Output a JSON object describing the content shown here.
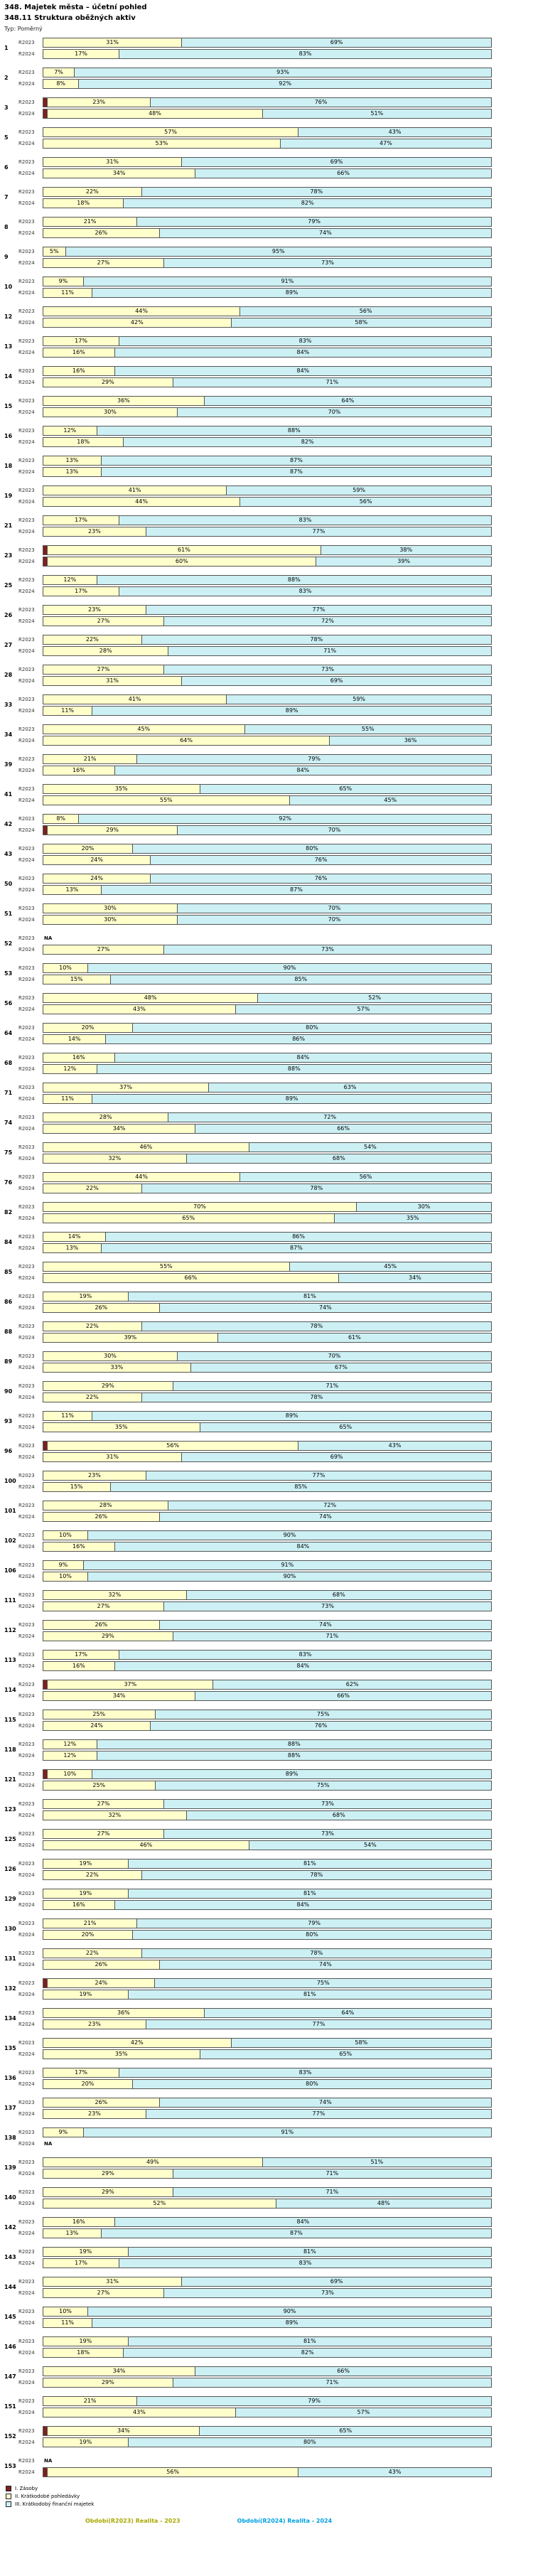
{
  "header": {
    "title": "348. Majetek města – účetní pohled",
    "subtitle": "348.11 Struktura oběžných aktiv",
    "type_label": "Typ: Poměrný"
  },
  "chart_data": {
    "type": "bar",
    "orientation": "horizontal",
    "stacked": true,
    "unit": "%",
    "title": "348.11 Struktura oběžných aktiv",
    "xlim": [
      0,
      100
    ],
    "series_labels": [
      "R2023",
      "R2024"
    ],
    "segments": [
      "I. Zásoby",
      "II. Krátkodobé pohledávky",
      "III. Krátkodobý finanční majetek"
    ],
    "colors": {
      "zasoby": "#7f1f1f",
      "pohledavky": "#ffffcc",
      "finmajetek": "#ccf0f4"
    },
    "na_label": "NA",
    "rows": [
      {
        "id": "1",
        "r2023": [
          0,
          31,
          69
        ],
        "r2024": [
          0,
          17,
          83
        ]
      },
      {
        "id": "2",
        "r2023": [
          0,
          7,
          93
        ],
        "r2024": [
          0,
          8,
          92
        ]
      },
      {
        "id": "3",
        "r2023": [
          1,
          23,
          76
        ],
        "r2024": [
          1,
          48,
          51
        ]
      },
      {
        "id": "5",
        "r2023": [
          0,
          57,
          43
        ],
        "r2024": [
          0,
          53,
          47
        ]
      },
      {
        "id": "6",
        "r2023": [
          0,
          31,
          69
        ],
        "r2024": [
          0,
          34,
          66
        ]
      },
      {
        "id": "7",
        "r2023": [
          0,
          22,
          78
        ],
        "r2024": [
          0,
          18,
          82
        ]
      },
      {
        "id": "8",
        "r2023": [
          0,
          21,
          79
        ],
        "r2024": [
          0,
          26,
          74
        ]
      },
      {
        "id": "9",
        "r2023": [
          0,
          5,
          95
        ],
        "r2024": [
          0,
          27,
          73
        ]
      },
      {
        "id": "10",
        "r2023": [
          0,
          9,
          91
        ],
        "r2024": [
          0,
          11,
          89
        ]
      },
      {
        "id": "12",
        "r2023": [
          0,
          44,
          56
        ],
        "r2024": [
          0,
          42,
          58
        ]
      },
      {
        "id": "13",
        "r2023": [
          0,
          17,
          83
        ],
        "r2024": [
          0,
          16,
          84
        ]
      },
      {
        "id": "14",
        "r2023": [
          0,
          16,
          84
        ],
        "r2024": [
          0,
          29,
          71
        ]
      },
      {
        "id": "15",
        "r2023": [
          0,
          36,
          64
        ],
        "r2024": [
          0,
          30,
          70
        ]
      },
      {
        "id": "16",
        "r2023": [
          0,
          12,
          88
        ],
        "r2024": [
          0,
          18,
          82
        ]
      },
      {
        "id": "18",
        "r2023": [
          0,
          13,
          87
        ],
        "r2024": [
          0,
          13,
          87
        ]
      },
      {
        "id": "19",
        "r2023": [
          0,
          41,
          59
        ],
        "r2024": [
          0,
          44,
          56
        ]
      },
      {
        "id": "21",
        "r2023": [
          0,
          17,
          83
        ],
        "r2024": [
          0,
          23,
          77
        ]
      },
      {
        "id": "23",
        "r2023": [
          1,
          61,
          38
        ],
        "r2024": [
          1,
          60,
          39
        ]
      },
      {
        "id": "25",
        "r2023": [
          0,
          12,
          88
        ],
        "r2024": [
          0,
          17,
          83
        ]
      },
      {
        "id": "26",
        "r2023": [
          0,
          23,
          77
        ],
        "r2024": [
          0,
          27,
          72
        ]
      },
      {
        "id": "27",
        "r2023": [
          0,
          22,
          78
        ],
        "r2024": [
          0,
          28,
          71
        ]
      },
      {
        "id": "28",
        "r2023": [
          0,
          27,
          73
        ],
        "r2024": [
          0,
          31,
          69
        ]
      },
      {
        "id": "33",
        "r2023": [
          0,
          41,
          59
        ],
        "r2024": [
          0,
          11,
          89
        ]
      },
      {
        "id": "34",
        "r2023": [
          0,
          45,
          55
        ],
        "r2024": [
          0,
          64,
          36
        ]
      },
      {
        "id": "39",
        "r2023": [
          0,
          21,
          79
        ],
        "r2024": [
          0,
          16,
          84
        ]
      },
      {
        "id": "41",
        "r2023": [
          0,
          35,
          65
        ],
        "r2024": [
          0,
          55,
          45
        ]
      },
      {
        "id": "42",
        "r2023": [
          0,
          8,
          92
        ],
        "r2024": [
          1,
          29,
          70
        ]
      },
      {
        "id": "43",
        "r2023": [
          0,
          20,
          80
        ],
        "r2024": [
          0,
          24,
          76
        ]
      },
      {
        "id": "50",
        "r2023": [
          0,
          24,
          76
        ],
        "r2024": [
          0,
          13,
          87
        ]
      },
      {
        "id": "51",
        "r2023": [
          0,
          30,
          70
        ],
        "r2024": [
          0,
          30,
          70
        ]
      },
      {
        "id": "52",
        "r2023": "NA",
        "r2024": [
          0,
          27,
          73
        ]
      },
      {
        "id": "53",
        "r2023": [
          0,
          10,
          90
        ],
        "r2024": [
          0,
          15,
          85
        ]
      },
      {
        "id": "56",
        "r2023": [
          0,
          48,
          52
        ],
        "r2024": [
          0,
          43,
          57
        ]
      },
      {
        "id": "64",
        "r2023": [
          0,
          20,
          80
        ],
        "r2024": [
          0,
          14,
          86
        ]
      },
      {
        "id": "68",
        "r2023": [
          0,
          16,
          84
        ],
        "r2024": [
          0,
          12,
          88
        ]
      },
      {
        "id": "71",
        "r2023": [
          0,
          37,
          63
        ],
        "r2024": [
          0,
          11,
          89
        ]
      },
      {
        "id": "74",
        "r2023": [
          0,
          28,
          72
        ],
        "r2024": [
          0,
          34,
          66
        ]
      },
      {
        "id": "75",
        "r2023": [
          0,
          46,
          54
        ],
        "r2024": [
          0,
          32,
          68
        ]
      },
      {
        "id": "76",
        "r2023": [
          0,
          44,
          56
        ],
        "r2024": [
          0,
          22,
          78
        ]
      },
      {
        "id": "82",
        "r2023": [
          0,
          70,
          30
        ],
        "r2024": [
          0,
          65,
          35
        ]
      },
      {
        "id": "84",
        "r2023": [
          0,
          14,
          86
        ],
        "r2024": [
          0,
          13,
          87
        ]
      },
      {
        "id": "85",
        "r2023": [
          0,
          55,
          45
        ],
        "r2024": [
          0,
          66,
          34
        ]
      },
      {
        "id": "86",
        "r2023": [
          0,
          19,
          81
        ],
        "r2024": [
          0,
          26,
          74
        ]
      },
      {
        "id": "88",
        "r2023": [
          0,
          22,
          78
        ],
        "r2024": [
          0,
          39,
          61
        ]
      },
      {
        "id": "89",
        "r2023": [
          0,
          30,
          70
        ],
        "r2024": [
          0,
          33,
          67
        ]
      },
      {
        "id": "90",
        "r2023": [
          0,
          29,
          71
        ],
        "r2024": [
          0,
          22,
          78
        ]
      },
      {
        "id": "93",
        "r2023": [
          0,
          11,
          89
        ],
        "r2024": [
          0,
          35,
          65
        ]
      },
      {
        "id": "96",
        "r2023": [
          1,
          56,
          43
        ],
        "r2024": [
          0,
          31,
          69
        ]
      },
      {
        "id": "100",
        "r2023": [
          0,
          23,
          77
        ],
        "r2024": [
          0,
          15,
          85
        ]
      },
      {
        "id": "101",
        "r2023": [
          0,
          28,
          72
        ],
        "r2024": [
          0,
          26,
          74
        ]
      },
      {
        "id": "102",
        "r2023": [
          0,
          10,
          90
        ],
        "r2024": [
          0,
          16,
          84
        ]
      },
      {
        "id": "106",
        "r2023": [
          0,
          9,
          91
        ],
        "r2024": [
          0,
          10,
          90
        ]
      },
      {
        "id": "111",
        "r2023": [
          0,
          32,
          68
        ],
        "r2024": [
          0,
          27,
          73
        ]
      },
      {
        "id": "112",
        "r2023": [
          0,
          26,
          74
        ],
        "r2024": [
          0,
          29,
          71
        ]
      },
      {
        "id": "113",
        "r2023": [
          0,
          17,
          83
        ],
        "r2024": [
          0,
          16,
          84
        ]
      },
      {
        "id": "114",
        "r2023": [
          1,
          37,
          62
        ],
        "r2024": [
          0,
          34,
          66
        ]
      },
      {
        "id": "115",
        "r2023": [
          0,
          25,
          75
        ],
        "r2024": [
          0,
          24,
          76
        ]
      },
      {
        "id": "118",
        "r2023": [
          0,
          12,
          88
        ],
        "r2024": [
          0,
          12,
          88
        ]
      },
      {
        "id": "121",
        "r2023": [
          1,
          10,
          89
        ],
        "r2024": [
          0,
          25,
          75
        ]
      },
      {
        "id": "123",
        "r2023": [
          0,
          27,
          73
        ],
        "r2024": [
          0,
          32,
          68
        ]
      },
      {
        "id": "125",
        "r2023": [
          0,
          27,
          73
        ],
        "r2024": [
          0,
          46,
          54
        ]
      },
      {
        "id": "126",
        "r2023": [
          0,
          19,
          81
        ],
        "r2024": [
          0,
          22,
          78
        ]
      },
      {
        "id": "129",
        "r2023": [
          0,
          19,
          81
        ],
        "r2024": [
          0,
          16,
          84
        ]
      },
      {
        "id": "130",
        "r2023": [
          0,
          21,
          79
        ],
        "r2024": [
          0,
          20,
          80
        ]
      },
      {
        "id": "131",
        "r2023": [
          0,
          22,
          78
        ],
        "r2024": [
          0,
          26,
          74
        ]
      },
      {
        "id": "132",
        "r2023": [
          1,
          24,
          75
        ],
        "r2024": [
          0,
          19,
          81
        ]
      },
      {
        "id": "134",
        "r2023": [
          0,
          36,
          64
        ],
        "r2024": [
          0,
          23,
          77
        ]
      },
      {
        "id": "135",
        "r2023": [
          0,
          42,
          58
        ],
        "r2024": [
          0,
          35,
          65
        ]
      },
      {
        "id": "136",
        "r2023": [
          0,
          17,
          83
        ],
        "r2024": [
          0,
          20,
          80
        ]
      },
      {
        "id": "137",
        "r2023": [
          0,
          26,
          74
        ],
        "r2024": [
          0,
          23,
          77
        ]
      },
      {
        "id": "138",
        "r2023": [
          0,
          9,
          91
        ],
        "r2024": "NA"
      },
      {
        "id": "139",
        "r2023": [
          0,
          49,
          51
        ],
        "r2024": [
          0,
          29,
          71
        ]
      },
      {
        "id": "140",
        "r2023": [
          0,
          29,
          71
        ],
        "r2024": [
          0,
          52,
          48
        ]
      },
      {
        "id": "142",
        "r2023": [
          0,
          16,
          84
        ],
        "r2024": [
          0,
          13,
          87
        ]
      },
      {
        "id": "143",
        "r2023": [
          0,
          19,
          81
        ],
        "r2024": [
          0,
          17,
          83
        ]
      },
      {
        "id": "144",
        "r2023": [
          0,
          31,
          69
        ],
        "r2024": [
          0,
          27,
          73
        ]
      },
      {
        "id": "145",
        "r2023": [
          0,
          10,
          90
        ],
        "r2024": [
          0,
          11,
          89
        ]
      },
      {
        "id": "146",
        "r2023": [
          0,
          19,
          81
        ],
        "r2024": [
          0,
          18,
          82
        ]
      },
      {
        "id": "147",
        "r2023": [
          0,
          34,
          66
        ],
        "r2024": [
          0,
          29,
          71
        ]
      },
      {
        "id": "151",
        "r2023": [
          0,
          21,
          79
        ],
        "r2024": [
          0,
          43,
          57
        ]
      },
      {
        "id": "152",
        "r2023": [
          1,
          34,
          65
        ],
        "r2024": [
          0,
          19,
          80
        ]
      },
      {
        "id": "153",
        "r2023": "NA",
        "r2024": [
          1,
          56,
          43
        ]
      }
    ]
  },
  "legend": {
    "items": [
      {
        "label": "I. Zásoby",
        "color": "#7f1f1f"
      },
      {
        "label": "II. Krátkodobé pohledávky",
        "color": "#ffffcc"
      },
      {
        "label": "III. Krátkodobý finanční majetek",
        "color": "#ccf0f4"
      }
    ]
  },
  "footer": {
    "period_2023": "Období(R2023) Realita - 2023",
    "period_2024": "Období(R2024) Realita - 2024",
    "color_2023": "#a8a800",
    "color_2024": "#00a0e0"
  }
}
